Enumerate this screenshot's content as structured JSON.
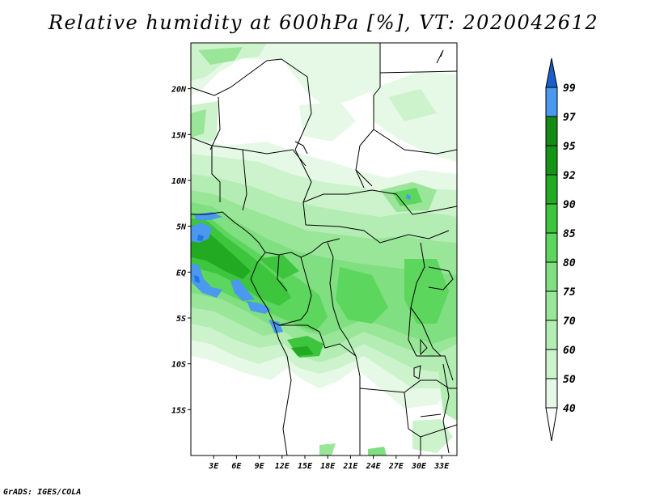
{
  "title": "Relative humidity at 600hPa [%], VT: 2020042612",
  "footer": "GrADS: IGES/COLA",
  "map": {
    "lon_range": [
      0,
      35
    ],
    "lat_range": [
      -20,
      25
    ],
    "lat_ticks": [
      {
        "value": 20,
        "label": "20N"
      },
      {
        "value": 15,
        "label": "15N"
      },
      {
        "value": 10,
        "label": "10N"
      },
      {
        "value": 5,
        "label": "5N"
      },
      {
        "value": 0,
        "label": "EQ"
      },
      {
        "value": -5,
        "label": "5S"
      },
      {
        "value": -10,
        "label": "10S"
      },
      {
        "value": -15,
        "label": "15S"
      }
    ],
    "lon_ticks": [
      {
        "value": 3,
        "label": "3E"
      },
      {
        "value": 6,
        "label": "6E"
      },
      {
        "value": 9,
        "label": "9E"
      },
      {
        "value": 12,
        "label": "12E"
      },
      {
        "value": 15,
        "label": "15E"
      },
      {
        "value": 18,
        "label": "18E"
      },
      {
        "value": 21,
        "label": "21E"
      },
      {
        "value": 24,
        "label": "24E"
      },
      {
        "value": 27,
        "label": "27E"
      },
      {
        "value": 30,
        "label": "30E"
      },
      {
        "value": 33,
        "label": "33E"
      }
    ]
  },
  "colorbar": {
    "levels": [
      "40",
      "50",
      "60",
      "70",
      "75",
      "80",
      "85",
      "90",
      "92",
      "95",
      "97",
      "99"
    ],
    "colors": [
      "#ffffff",
      "#e6f9e6",
      "#cdf3cd",
      "#b3edb3",
      "#99e699",
      "#80df80",
      "#5cd65c",
      "#3dc53d",
      "#22aa22",
      "#159515",
      "#158a15",
      "#4a99ee",
      "#2277dd",
      "#1a5fc8"
    ]
  }
}
